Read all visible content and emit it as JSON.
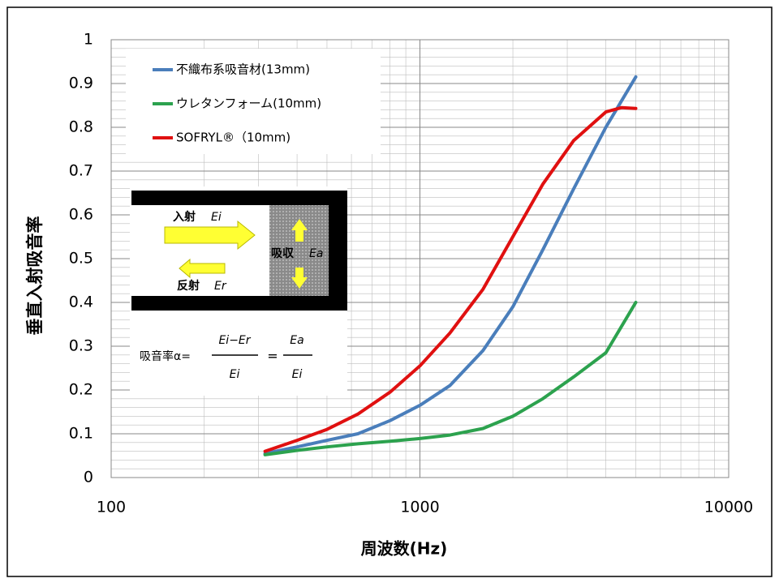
{
  "chart_data": {
    "type": "line",
    "x_label": "周波数(Hz)",
    "y_label": "垂直入射吸音率",
    "log_x": true,
    "grid": true,
    "xlim": [
      100,
      10000
    ],
    "xticks": [
      100,
      1000,
      10000
    ],
    "minor_xticks": [
      200,
      300,
      400,
      500,
      600,
      700,
      800,
      900,
      2000,
      3000,
      4000,
      5000,
      6000,
      7000,
      8000,
      9000
    ],
    "ylim": [
      0,
      1
    ],
    "yticks": [
      0,
      0.1,
      0.2,
      0.3,
      0.4,
      0.5,
      0.6,
      0.7,
      0.8,
      0.9,
      1
    ],
    "minor_yticks": [
      0.02,
      0.04,
      0.06,
      0.08,
      0.12,
      0.14,
      0.16,
      0.18,
      0.22,
      0.24,
      0.26,
      0.28,
      0.32,
      0.34,
      0.36,
      0.38,
      0.42,
      0.44,
      0.46,
      0.48,
      0.52,
      0.54,
      0.56,
      0.58,
      0.62,
      0.64,
      0.66,
      0.68,
      0.72,
      0.74,
      0.76,
      0.78,
      0.82,
      0.84,
      0.86,
      0.88,
      0.92,
      0.94,
      0.96,
      0.98
    ],
    "series": [
      {
        "name": "不織布系吸音材(13mm)",
        "color": "#4a7ebb",
        "x": [
          315,
          400,
          500,
          630,
          800,
          1000,
          1250,
          1600,
          2000,
          2500,
          3150,
          4000,
          5000
        ],
        "values": [
          0.055,
          0.07,
          0.085,
          0.1,
          0.13,
          0.165,
          0.21,
          0.29,
          0.39,
          0.52,
          0.66,
          0.8,
          0.915
        ]
      },
      {
        "name": "ウレタンフォーム(10mm)",
        "color": "#2ca24e",
        "x": [
          315,
          400,
          500,
          630,
          800,
          1000,
          1250,
          1600,
          2000,
          2500,
          3150,
          4000,
          5000
        ],
        "values": [
          0.052,
          0.062,
          0.07,
          0.077,
          0.083,
          0.089,
          0.097,
          0.112,
          0.14,
          0.18,
          0.23,
          0.285,
          0.4
        ]
      },
      {
        "name": "SOFRYL®（10mm)",
        "color": "#e01010",
        "x": [
          315,
          400,
          500,
          630,
          800,
          1000,
          1250,
          1600,
          2000,
          2500,
          3150,
          4000,
          4500,
          5000
        ],
        "values": [
          0.06,
          0.085,
          0.11,
          0.145,
          0.195,
          0.255,
          0.33,
          0.43,
          0.55,
          0.67,
          0.77,
          0.835,
          0.845,
          0.843
        ]
      }
    ],
    "inset": {
      "incident": "入射",
      "incident_var": "Ei",
      "reflected": "反射",
      "reflected_var": "Er",
      "absorbed": "吸収",
      "absorbed_var": "Ea",
      "formula_label": "吸音率α=",
      "numerator1": "Ei−Er",
      "denominator1": "Ei",
      "equals": "=",
      "numerator2": "Ea",
      "denominator2": "Ei"
    }
  }
}
